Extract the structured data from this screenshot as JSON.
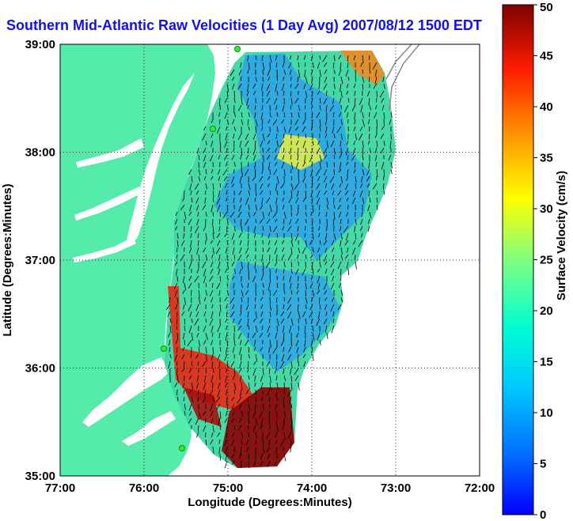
{
  "title": "Southern Mid-Atlantic Raw Velocities (1 Day Avg) 2007/08/12 1500 EDT",
  "chart_data": {
    "type": "heatmap",
    "title": "Southern Mid-Atlantic Raw Velocities (1 Day Avg) 2007/08/12 1500 EDT",
    "xlabel": "Longitude (Degrees:Minutes)",
    "ylabel": "Latitude (Degrees:Minutes)",
    "colorbar_label": "Surface Velocity (cm/s)",
    "x_ticks": [
      "77:00",
      "76:00",
      "75:00",
      "74:00",
      "73:00",
      "72:00"
    ],
    "y_ticks": [
      "39:00",
      "38:00",
      "37:00",
      "36:00",
      "35:00"
    ],
    "colorbar_ticks": [
      "0",
      "5",
      "10",
      "15",
      "20",
      "25",
      "30",
      "35",
      "40",
      "45",
      "50"
    ],
    "xlim": [
      -77,
      -72
    ],
    "ylim": [
      35,
      39
    ],
    "clim": [
      0,
      50
    ],
    "grid": true,
    "land_color": "#55ecab",
    "gridline_style": "dotted",
    "colormap": "jet"
  }
}
